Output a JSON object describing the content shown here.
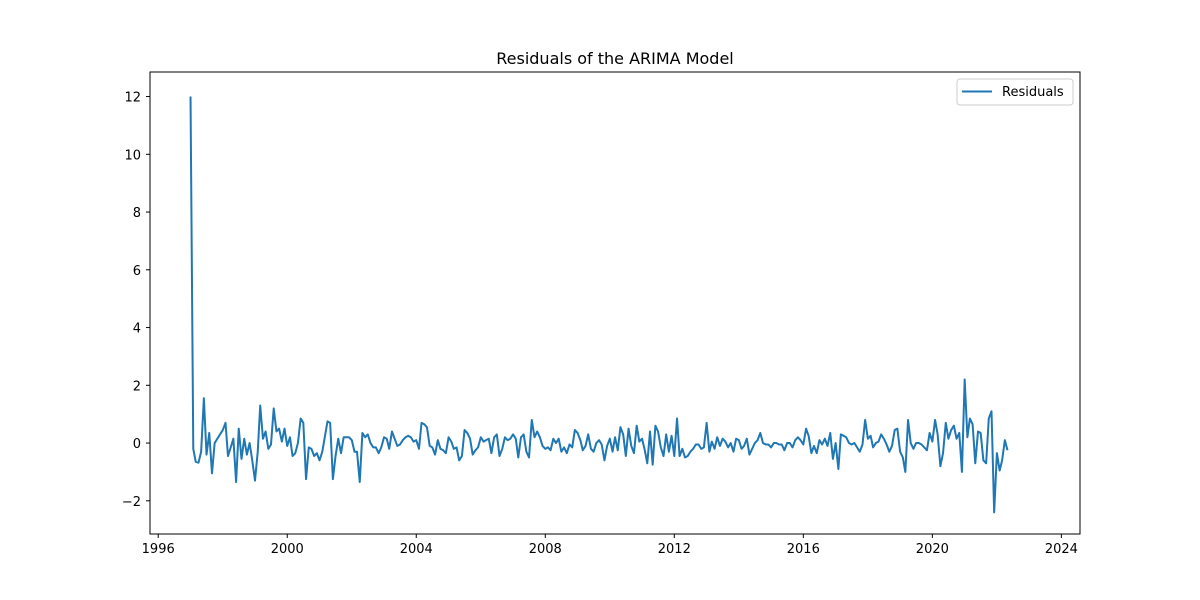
{
  "chart_data": {
    "type": "line",
    "title": "Residuals of the ARIMA Model",
    "xlabel": "",
    "ylabel": "",
    "x_axis_kind": "date",
    "xlim": [
      "1995-09-30",
      "2024-07-30"
    ],
    "ylim": [
      -3.15,
      12.85
    ],
    "x_ticks": [
      "1996",
      "2000",
      "2004",
      "2008",
      "2012",
      "2016",
      "2020",
      "2024"
    ],
    "y_ticks": [
      "−2",
      "0",
      "2",
      "4",
      "6",
      "8",
      "10",
      "12"
    ],
    "y_tick_values": [
      -2,
      0,
      2,
      4,
      6,
      8,
      10,
      12
    ],
    "grid": false,
    "legend_position": "top-right",
    "line_color": "#1f77b4",
    "x_start": "1997-01",
    "x_frequency": "monthly",
    "series": [
      {
        "name": "Residuals",
        "values": [
          12.0,
          -0.2,
          -0.65,
          -0.68,
          -0.3,
          1.55,
          -0.4,
          0.35,
          -1.05,
          0.0,
          0.15,
          0.3,
          0.45,
          0.7,
          -0.45,
          -0.15,
          0.15,
          -1.35,
          0.5,
          -0.55,
          0.15,
          -0.4,
          0.0,
          -0.6,
          -1.3,
          -0.3,
          1.3,
          0.15,
          0.4,
          -0.2,
          -0.05,
          1.2,
          0.4,
          0.5,
          0.05,
          0.5,
          -0.1,
          0.2,
          -0.45,
          -0.35,
          0.0,
          0.85,
          0.7,
          -1.25,
          -0.15,
          -0.2,
          -0.45,
          -0.35,
          -0.6,
          -0.3,
          0.2,
          0.75,
          0.7,
          -1.25,
          -0.45,
          0.15,
          -0.35,
          0.2,
          0.2,
          0.2,
          0.1,
          -0.3,
          -0.3,
          -1.35,
          0.35,
          0.2,
          0.3,
          0.0,
          -0.15,
          -0.15,
          -0.35,
          -0.15,
          0.2,
          0.15,
          -0.2,
          0.4,
          0.15,
          -0.1,
          -0.05,
          0.1,
          0.2,
          0.25,
          0.2,
          0.05,
          0.1,
          -0.2,
          0.7,
          0.65,
          0.55,
          -0.1,
          -0.15,
          -0.4,
          0.1,
          -0.2,
          -0.25,
          -0.35,
          0.2,
          0.05,
          -0.2,
          -0.15,
          -0.6,
          -0.45,
          0.45,
          0.35,
          0.15,
          -0.4,
          -0.25,
          -0.15,
          0.2,
          0.05,
          0.1,
          0.15,
          -0.35,
          0.2,
          0.3,
          -0.45,
          -0.2,
          0.2,
          0.1,
          0.15,
          0.3,
          0.15,
          -0.5,
          0.2,
          0.3,
          -0.3,
          -0.5,
          0.8,
          0.2,
          0.4,
          0.2,
          -0.1,
          -0.2,
          -0.15,
          -0.25,
          0.15,
          0.0,
          0.15,
          -0.3,
          -0.15,
          -0.35,
          -0.05,
          -0.15,
          0.45,
          0.35,
          0.1,
          -0.25,
          -0.1,
          0.3,
          -0.2,
          -0.3,
          0.0,
          0.1,
          -0.05,
          -0.6,
          -0.1,
          0.15,
          -0.3,
          0.2,
          -0.25,
          0.55,
          0.3,
          -0.45,
          0.5,
          -0.1,
          -0.35,
          0.6,
          0.05,
          0.15,
          -0.25,
          -0.7,
          0.4,
          -0.75,
          0.6,
          0.4,
          -0.15,
          -0.45,
          0.3,
          -0.3,
          0.25,
          -0.45,
          0.85,
          -0.45,
          -0.2,
          -0.5,
          -0.45,
          -0.3,
          -0.2,
          -0.05,
          -0.05,
          -0.2,
          -0.15,
          0.7,
          -0.3,
          0.05,
          -0.2,
          0.2,
          -0.1,
          0.15,
          0.05,
          -0.15,
          0.0,
          -0.3,
          0.15,
          0.1,
          -0.2,
          -0.1,
          0.15,
          -0.4,
          -0.2,
          0.0,
          0.1,
          0.35,
          0.0,
          -0.05,
          -0.05,
          -0.15,
          0.0,
          0.0,
          -0.05,
          -0.05,
          -0.25,
          0.0,
          0.0,
          -0.15,
          0.1,
          0.2,
          0.1,
          -0.05,
          0.5,
          0.25,
          -0.35,
          -0.1,
          -0.35,
          0.1,
          -0.05,
          0.15,
          -0.1,
          0.35,
          -0.55,
          0.0,
          -0.9,
          0.3,
          0.25,
          0.2,
          0.0,
          -0.05,
          0.0,
          -0.15,
          -0.3,
          -0.05,
          0.8,
          0.15,
          0.25,
          -0.15,
          0.0,
          0.05,
          0.3,
          0.15,
          -0.05,
          -0.3,
          -0.1,
          0.45,
          0.5,
          -0.3,
          -0.5,
          -1.0,
          0.8,
          0.0,
          -0.2,
          0.0,
          0.0,
          -0.05,
          -0.15,
          -0.25,
          0.35,
          0.05,
          0.8,
          0.3,
          -0.8,
          -0.35,
          0.7,
          0.15,
          0.45,
          0.6,
          0.15,
          0.35,
          -1.0,
          2.2,
          0.2,
          0.85,
          0.65,
          -0.7,
          0.4,
          0.35,
          -0.6,
          -0.7,
          0.85,
          1.1,
          -2.4,
          -0.35,
          -0.95,
          -0.6,
          0.1,
          -0.25
        ]
      }
    ]
  }
}
